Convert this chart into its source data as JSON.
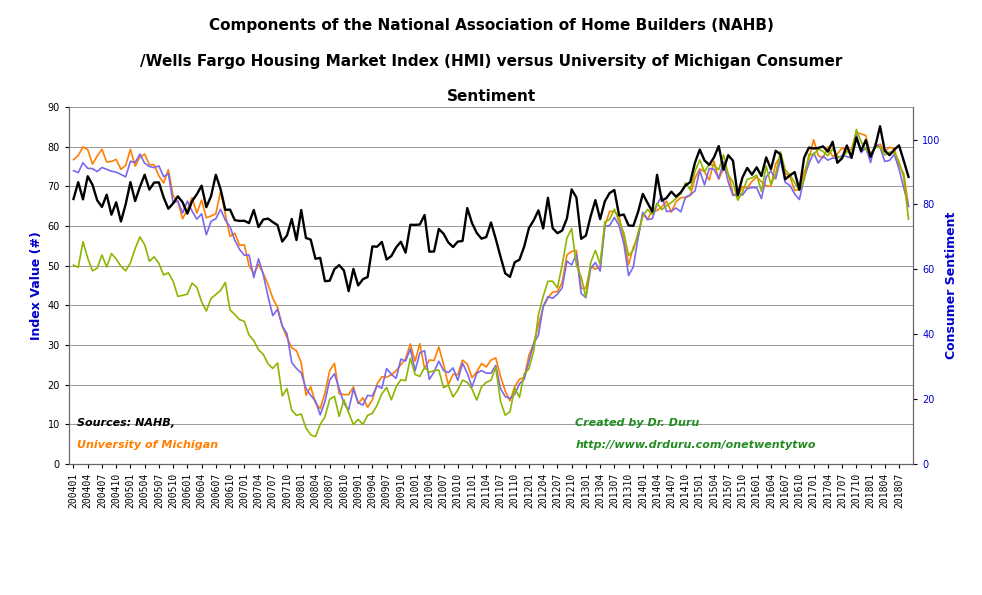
{
  "title": "Components of the National Association of Home Builders (NAHB)\n/Wells Fargo Housing Market Index (HMI) versus University of Michigan Consumer\nSentiment",
  "ylabel_left": "Index Value (#)",
  "ylabel_right": "Consumer Sentiment",
  "ylim_left": [
    0,
    90
  ],
  "ylim_right": [
    0,
    110
  ],
  "yticks_left": [
    0,
    10,
    20,
    30,
    40,
    50,
    60,
    70,
    80,
    90
  ],
  "yticks_right": [
    0,
    20,
    40,
    60,
    80,
    100
  ],
  "colors": {
    "orange": "#FF7F00",
    "blue": "#7B68EE",
    "green": "#8DB600",
    "black": "#000000"
  },
  "background_color": "#FFFFFF",
  "grid_color": "#999999",
  "source_color": "#000000",
  "umich_color": "#FF7F00",
  "credit_color": "#228B22"
}
